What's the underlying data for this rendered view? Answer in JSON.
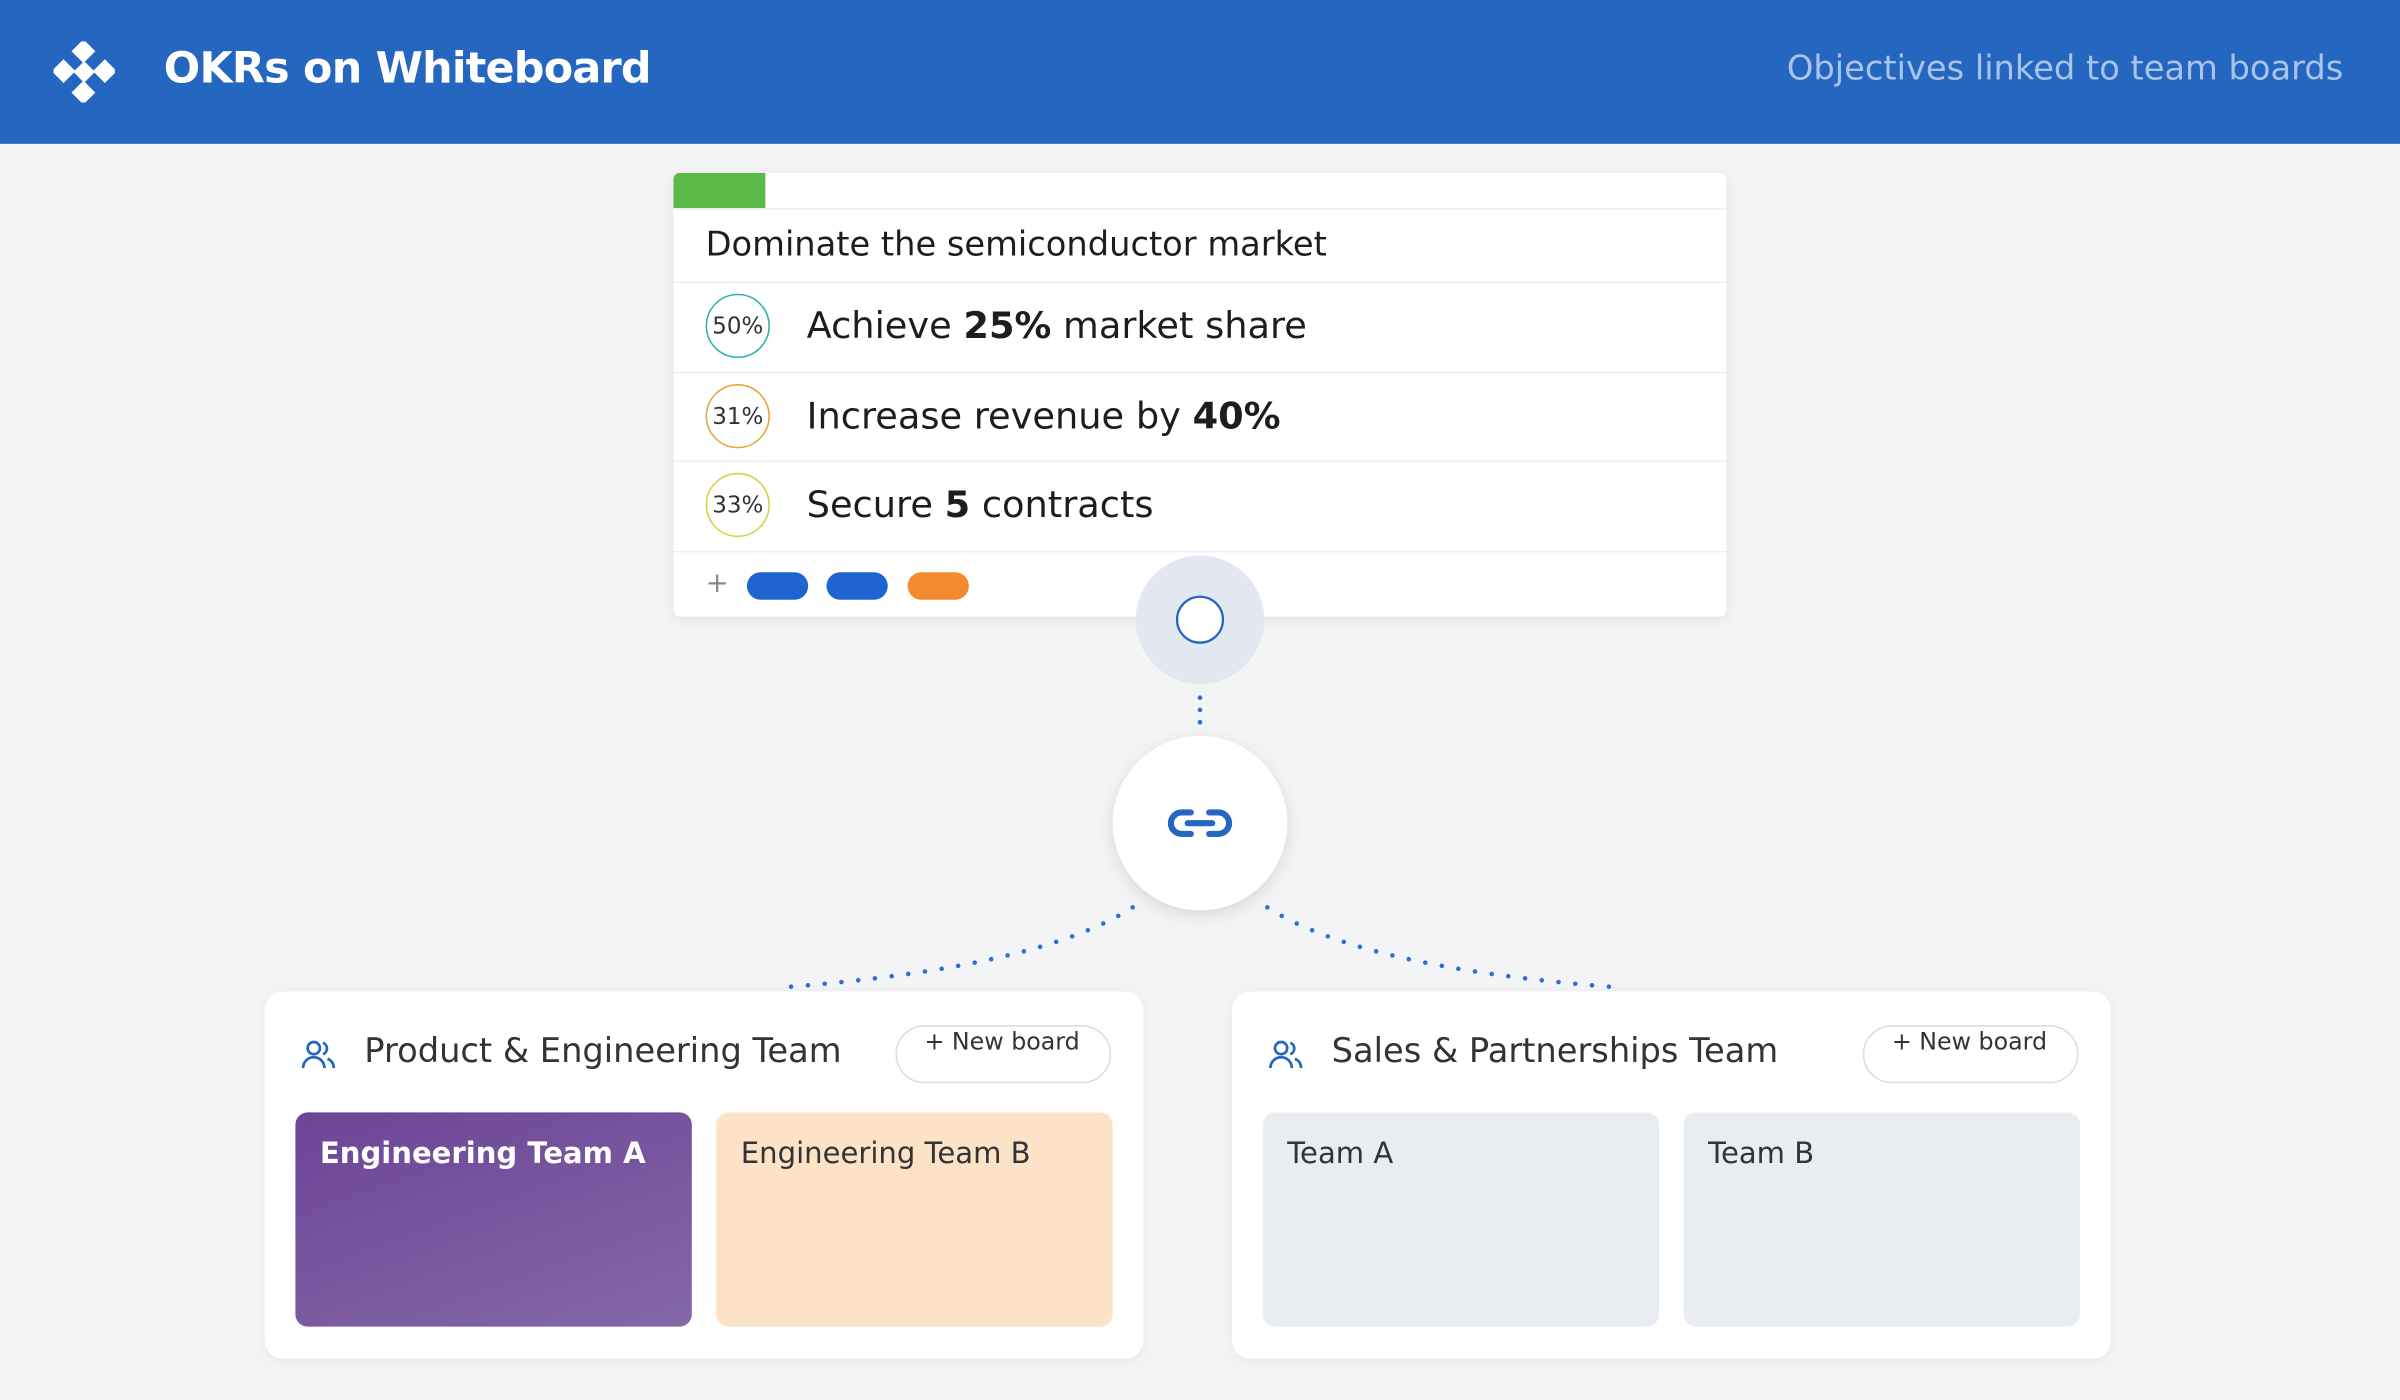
{
  "header": {
    "title": "OKRs on Whiteboard",
    "subtitle": "Objectives linked to team boards"
  },
  "objective": {
    "title": "Dominate the semiconductor market",
    "key_results": [
      {
        "progress": "50%",
        "text_before": "Achieve ",
        "text_bold": "25%",
        "text_after": " market share",
        "color": "#2bb3a3"
      },
      {
        "progress": "31%",
        "text_before": "Increase revenue by ",
        "text_bold": "40%",
        "text_after": "",
        "color": "#e0a83a"
      },
      {
        "progress": "33%",
        "text_before": "Secure ",
        "text_bold": "5",
        "text_after": " contracts",
        "color": "#d2d23c"
      }
    ],
    "add": "+"
  },
  "teams": [
    {
      "name": "Product & Engineering Team",
      "button": "+ New board",
      "boards": [
        "Engineering Team A",
        "Engineering Team B"
      ]
    },
    {
      "name": "Sales & Partnerships Team",
      "button": "+ New board",
      "boards": [
        "Team A",
        "Team B"
      ]
    }
  ]
}
